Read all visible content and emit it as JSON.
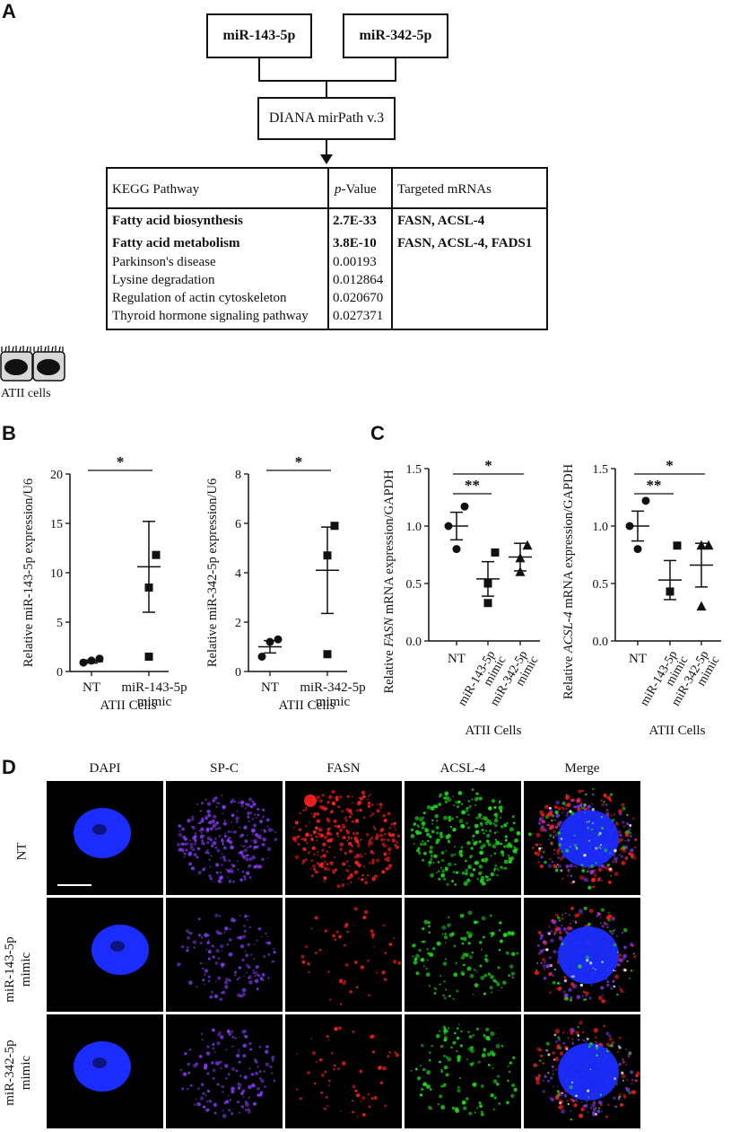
{
  "panels": {
    "a": "A",
    "b": "B",
    "c": "C",
    "d": "D"
  },
  "flow": {
    "mirna1": "miR-143-5p",
    "mirna2": "miR-342-5p",
    "tool": "DIANA mirPath v.3"
  },
  "kegg_table": {
    "headers": [
      "KEGG Pathway",
      "p",
      "-Value",
      "Targeted mRNAs"
    ],
    "rows": [
      {
        "pathway": "Fatty acid biosynthesis",
        "pvalue": "2.7E-33",
        "targets": "FASN, ACSL-4",
        "bold": true
      },
      {
        "pathway": "Fatty acid metabolism",
        "pvalue": "3.8E-10",
        "targets": "FASN, ACSL-4, FADS1",
        "bold": true
      },
      {
        "pathway": "Parkinson's disease",
        "pvalue": "0.00193",
        "targets": "",
        "bold": false
      },
      {
        "pathway": "Lysine degradation",
        "pvalue": "0.012864",
        "targets": "",
        "bold": false
      },
      {
        "pathway": "Regulation of actin cytoskeleton",
        "pvalue": "0.020670",
        "targets": "",
        "bold": false
      },
      {
        "pathway": "Thyroid hormone signaling pathway",
        "pvalue": "0.027371",
        "targets": "",
        "bold": false
      }
    ]
  },
  "cells_icon_label": "ATII cells",
  "chart_data": [
    {
      "type": "scatter",
      "ylabel": "Relative miR-143-5p expression/U6",
      "xlabel": "ATII Cells",
      "categories": [
        "NT",
        "miR-143-5p\nmimic"
      ],
      "ylim": [
        0,
        20
      ],
      "yticks": [
        0,
        5,
        10,
        15,
        20
      ],
      "points": [
        [
          0.9,
          1.1,
          1.3
        ],
        [
          1.5,
          8.5,
          11.8
        ]
      ],
      "means": [
        1.0,
        10.6
      ],
      "sem": [
        0.15,
        4.6
      ],
      "markers": [
        "circle",
        "square"
      ],
      "significance": [
        {
          "from": 0,
          "to": 1,
          "label": "*"
        }
      ]
    },
    {
      "type": "scatter",
      "ylabel": "Relative miR-342-5p expression/U6",
      "xlabel": "ATII Cells",
      "categories": [
        "NT",
        "miR-342-5p\nmimic"
      ],
      "ylim": [
        0,
        8
      ],
      "yticks": [
        0,
        2,
        4,
        6,
        8
      ],
      "points": [
        [
          0.6,
          1.2,
          1.3
        ],
        [
          0.7,
          4.7,
          5.9
        ]
      ],
      "means": [
        1.0,
        4.1
      ],
      "sem": [
        0.25,
        1.75
      ],
      "markers": [
        "circle",
        "square"
      ],
      "significance": [
        {
          "from": 0,
          "to": 1,
          "label": "*"
        }
      ]
    },
    {
      "type": "scatter",
      "ylabel_pre": "Relative ",
      "ylabel_gene": "FASN",
      "ylabel_post": " mRNA expression/GAPDH",
      "xlabel": "ATII Cells",
      "categories": [
        "NT",
        "miR-143-5p\nmimic",
        "miR-342-5p\nmimic"
      ],
      "ylim": [
        0,
        1.5
      ],
      "yticks": [
        "0.0",
        "0.5",
        "1.0",
        "1.5"
      ],
      "points": [
        [
          0.8,
          1.0,
          1.17
        ],
        [
          0.33,
          0.5,
          0.77
        ],
        [
          0.6,
          0.72,
          0.83
        ]
      ],
      "means": [
        1.0,
        0.54,
        0.73
      ],
      "sem": [
        0.12,
        0.15,
        0.12
      ],
      "markers": [
        "circle",
        "square",
        "triangle"
      ],
      "significance": [
        {
          "from": 0,
          "to": 1,
          "label": "**"
        },
        {
          "from": 0,
          "to": 2,
          "label": "*"
        }
      ]
    },
    {
      "type": "scatter",
      "ylabel_pre": "Relative ",
      "ylabel_gene": "ACSL-4",
      "ylabel_post": " mRNA expression/GAPDH",
      "xlabel": "ATII Cells",
      "categories": [
        "NT",
        "miR-143-5p\nmimic",
        "miR-342-5p\nmimic"
      ],
      "ylim": [
        0,
        1.5
      ],
      "yticks": [
        "0.0",
        "0.5",
        "1.0",
        "1.5"
      ],
      "points": [
        [
          0.8,
          1.0,
          1.22
        ],
        [
          0.43,
          0.43,
          0.83
        ],
        [
          0.3,
          0.83,
          0.83
        ]
      ],
      "means": [
        1.0,
        0.53,
        0.66
      ],
      "sem": [
        0.13,
        0.17,
        0.19
      ],
      "markers": [
        "circle",
        "square",
        "triangle"
      ],
      "significance": [
        {
          "from": 0,
          "to": 1,
          "label": "**"
        },
        {
          "from": 0,
          "to": 2,
          "label": "*"
        }
      ]
    }
  ],
  "microscopy": {
    "columns": [
      "DAPI",
      "SP-C",
      "FASN",
      "ACSL-4",
      "Merge"
    ],
    "rows": [
      "NT",
      "miR-143-5p\nmimic",
      "miR-342-5p\nmimic"
    ],
    "colors": {
      "dapi": "#1a2cff",
      "spc": "#8a3cff",
      "fasn": "#ff2020",
      "acsl4": "#20e020"
    }
  }
}
